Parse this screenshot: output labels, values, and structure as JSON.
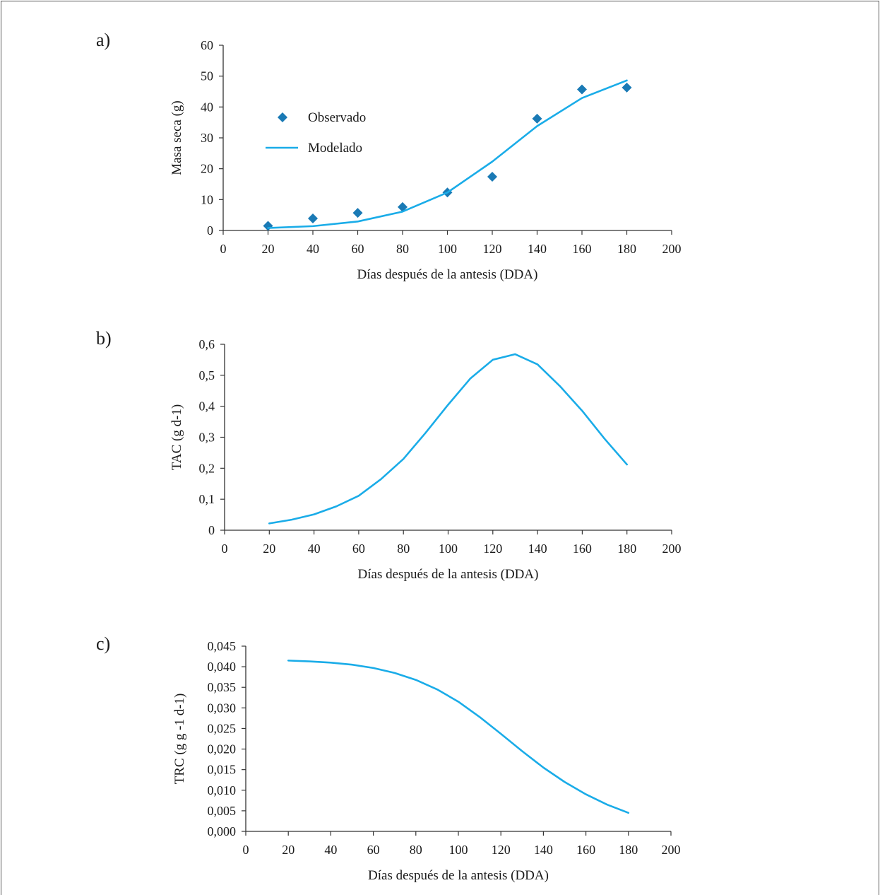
{
  "chart_data": [
    {
      "panel": "a)",
      "type": "scatter",
      "xlabel": "Días después de la antesis (DDA)",
      "ylabel": "Masa seca (g)",
      "xlim": [
        0,
        200
      ],
      "ylim": [
        0,
        60
      ],
      "xticks": [
        "0",
        "20",
        "40",
        "60",
        "80",
        "100",
        "120",
        "140",
        "160",
        "180",
        "200"
      ],
      "yticks": [
        "0",
        "10",
        "20",
        "30",
        "40",
        "50",
        "60"
      ],
      "legend": {
        "placement": "upper-left",
        "items": [
          "Observado",
          "Modelado"
        ]
      },
      "series": [
        {
          "name": "Observado",
          "kind": "scatter",
          "color": "#1a7ab5",
          "x": [
            20,
            40,
            60,
            80,
            100,
            120,
            140,
            160,
            180
          ],
          "y": [
            1.5,
            3.9,
            5.7,
            7.6,
            12.3,
            17.4,
            36.2,
            45.7,
            46.3
          ]
        },
        {
          "name": "Modelado",
          "kind": "line",
          "color": "#1aace8",
          "x": [
            20,
            40,
            60,
            80,
            100,
            120,
            140,
            160,
            180
          ],
          "y": [
            0.8,
            1.4,
            2.9,
            6.1,
            12.3,
            22.3,
            33.8,
            42.9,
            48.6
          ]
        }
      ]
    },
    {
      "panel": "b)",
      "type": "line",
      "xlabel": "Días después de la antesis (DDA)",
      "ylabel": "TAC (g d-1)",
      "xlim": [
        0,
        200
      ],
      "ylim": [
        0,
        0.6
      ],
      "xticks": [
        "0",
        "20",
        "40",
        "60",
        "80",
        "100",
        "120",
        "140",
        "160",
        "180",
        "200"
      ],
      "yticks": [
        "0",
        "0,1",
        "0,2",
        "0,3",
        "0,4",
        "0,5",
        "0,6"
      ],
      "series": [
        {
          "color": "#1aace8",
          "x": [
            20,
            30,
            40,
            50,
            60,
            70,
            80,
            90,
            100,
            110,
            120,
            130,
            140,
            150,
            160,
            170,
            180
          ],
          "y": [
            0.022,
            0.034,
            0.051,
            0.077,
            0.111,
            0.165,
            0.23,
            0.315,
            0.405,
            0.49,
            0.55,
            0.568,
            0.535,
            0.465,
            0.385,
            0.295,
            0.212
          ]
        }
      ]
    },
    {
      "panel": "c)",
      "type": "line",
      "xlabel": "Días después de la antesis (DDA)",
      "ylabel": "TRC (g g -1 d-1)",
      "xlim": [
        0,
        200
      ],
      "ylim": [
        0,
        0.045
      ],
      "xticks": [
        "0",
        "20",
        "40",
        "60",
        "80",
        "100",
        "120",
        "140",
        "160",
        "180",
        "200"
      ],
      "yticks": [
        "0,000",
        "0,005",
        "0,010",
        "0,015",
        "0,020",
        "0,025",
        "0,030",
        "0,035",
        "0,040",
        "0,045"
      ],
      "series": [
        {
          "color": "#1aace8",
          "x": [
            20,
            30,
            40,
            50,
            60,
            70,
            80,
            90,
            100,
            110,
            120,
            130,
            140,
            150,
            160,
            170,
            180
          ],
          "y": [
            0.0415,
            0.0413,
            0.041,
            0.0405,
            0.0397,
            0.0385,
            0.0368,
            0.0345,
            0.0315,
            0.0278,
            0.0237,
            0.0195,
            0.0155,
            0.012,
            0.009,
            0.0065,
            0.0045
          ]
        }
      ]
    }
  ]
}
